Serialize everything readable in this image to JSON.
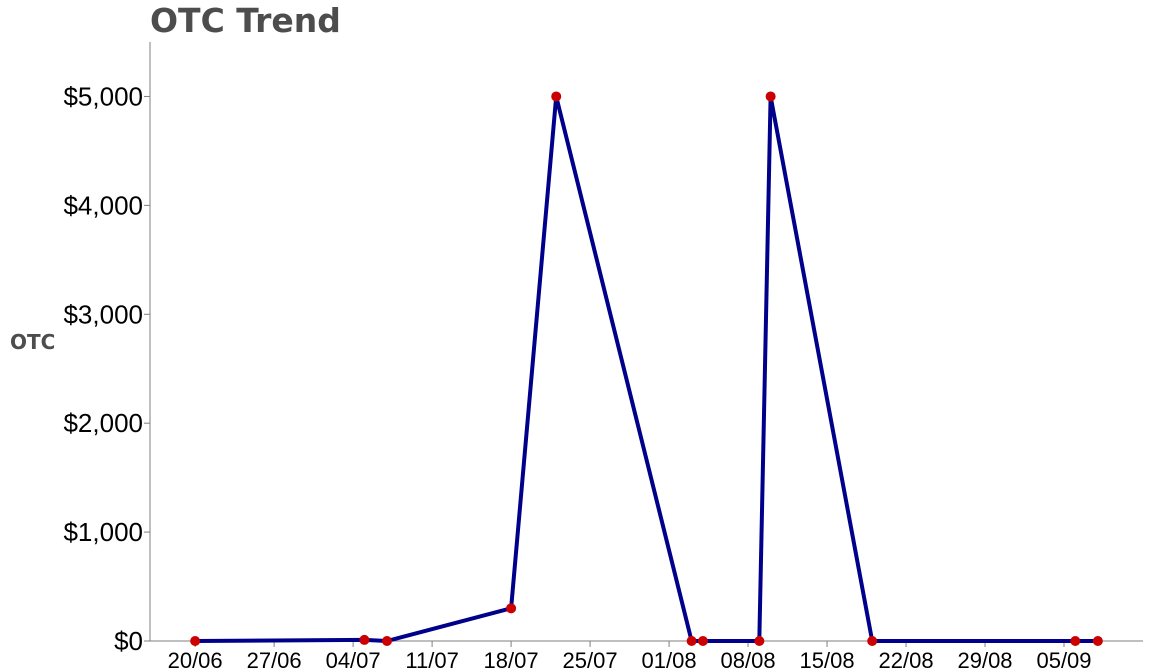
{
  "chart_data": {
    "type": "line",
    "title": "OTC Trend",
    "xlabel": "",
    "ylabel": "OTC",
    "x_ticks": [
      "20/06",
      "27/06",
      "04/07",
      "11/07",
      "18/07",
      "25/07",
      "01/08",
      "08/08",
      "15/08",
      "22/08",
      "29/08",
      "05/09"
    ],
    "y_ticks": [
      "$0",
      "$1,000",
      "$2,000",
      "$3,000",
      "$4,000",
      "$5,000"
    ],
    "y_tick_values": [
      0,
      1000,
      2000,
      3000,
      4000,
      5000
    ],
    "xlim": [
      "2022-06-16",
      "2022-09-12"
    ],
    "ylim": [
      0,
      5500
    ],
    "grid": false,
    "series": [
      {
        "line_color": "#00008b",
        "point_color": "#cc0000",
        "points": [
          {
            "x": "2022-06-20",
            "y": 0
          },
          {
            "x": "2022-07-05",
            "y": 10
          },
          {
            "x": "2022-07-07",
            "y": 0
          },
          {
            "x": "2022-07-18",
            "y": 300
          },
          {
            "x": "2022-07-22",
            "y": 5000
          },
          {
            "x": "2022-08-03",
            "y": 0
          },
          {
            "x": "2022-08-04",
            "y": 0
          },
          {
            "x": "2022-08-09",
            "y": 0
          },
          {
            "x": "2022-08-10",
            "y": 5000
          },
          {
            "x": "2022-08-19",
            "y": 0
          },
          {
            "x": "2022-09-06",
            "y": 0
          },
          {
            "x": "2022-09-08",
            "y": 0
          }
        ]
      }
    ]
  }
}
